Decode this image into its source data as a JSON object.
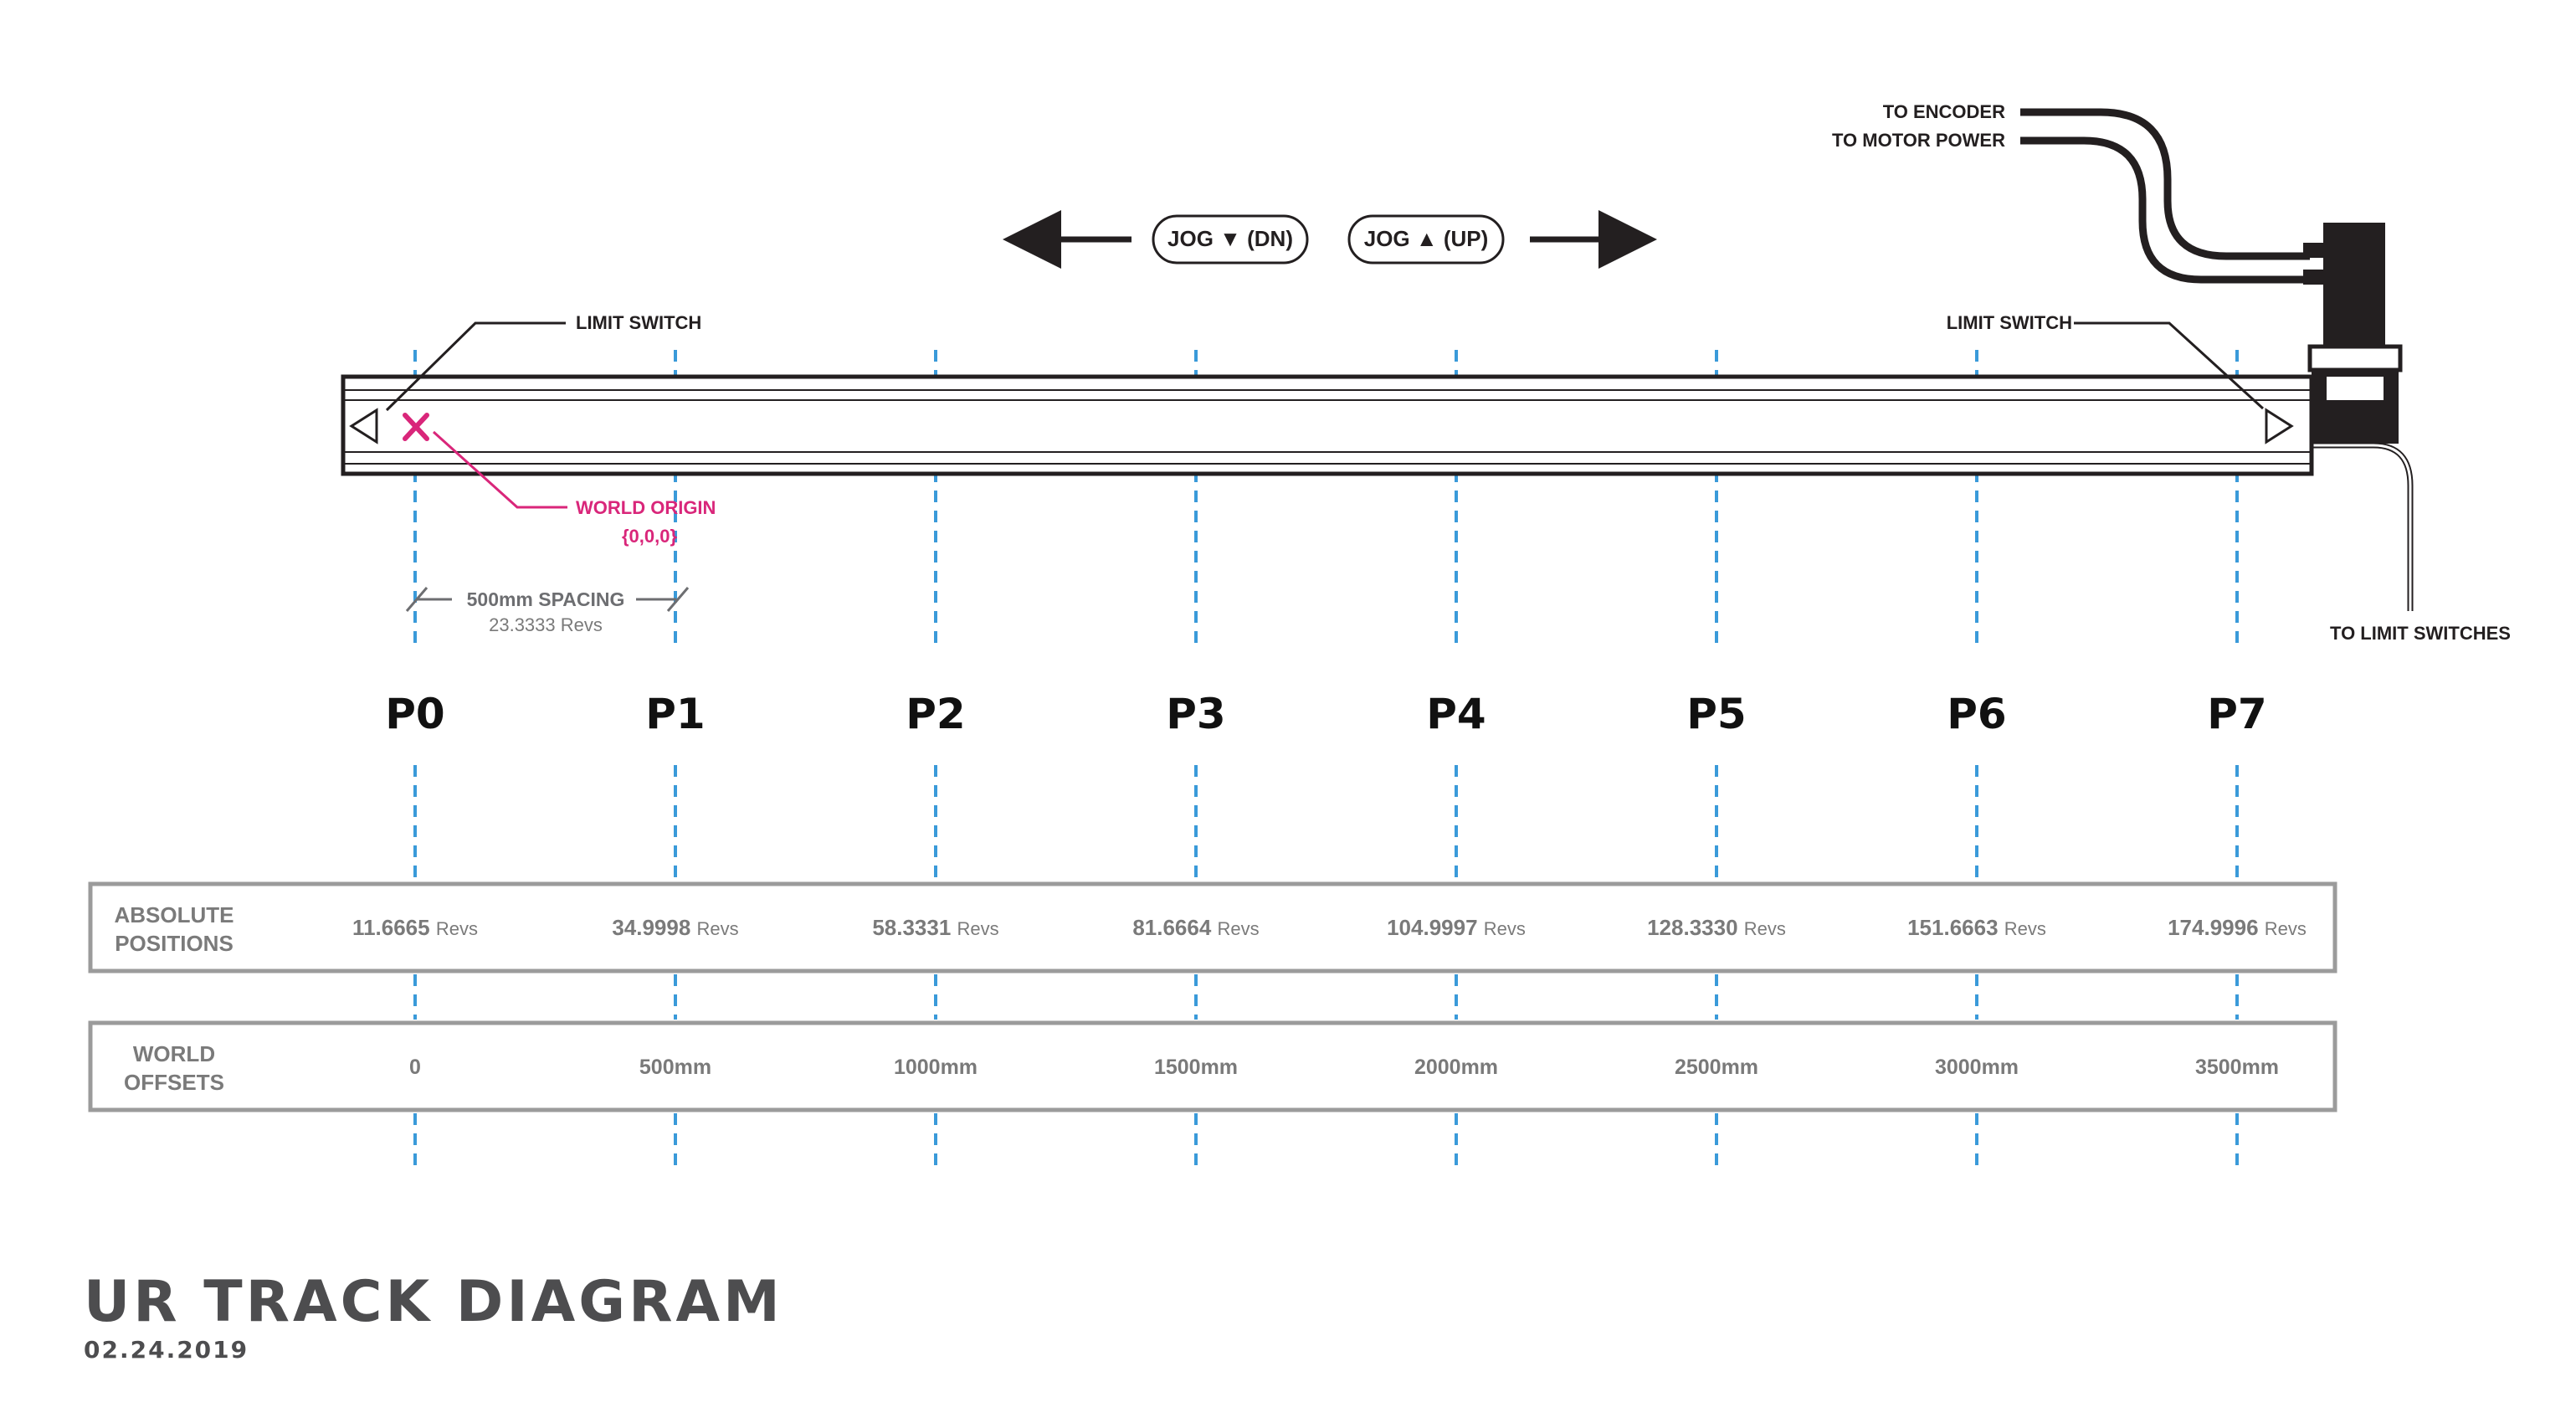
{
  "title": "UR TRACK DIAGRAM",
  "date": "02.24.2019",
  "jog_down_label": "JOG ▼ (DN)",
  "jog_up_label": "JOG ▲ (UP)",
  "limit_switch_left": "LIMIT SWITCH",
  "limit_switch_right": "LIMIT SWITCH",
  "to_encoder": "TO ENCODER",
  "to_motor_power": "TO MOTOR POWER",
  "to_limit_switches": "TO LIMIT SWITCHES",
  "world_origin_label": "WORLD ORIGIN",
  "world_origin_coords": "{0,0,0}",
  "spacing_label": "500mm SPACING",
  "spacing_revs": "23.3333 Revs",
  "positions": [
    {
      "label": "P0",
      "absolute_value": "11.6665",
      "offset": "0"
    },
    {
      "label": "P1",
      "absolute_value": "34.9998",
      "offset": "500mm"
    },
    {
      "label": "P2",
      "absolute_value": "58.3331",
      "offset": "1000mm"
    },
    {
      "label": "P3",
      "absolute_value": "81.6664",
      "offset": "1500mm"
    },
    {
      "label": "P4",
      "absolute_value": "104.9997",
      "offset": "2000mm"
    },
    {
      "label": "P5",
      "absolute_value": "128.3330",
      "offset": "2500mm"
    },
    {
      "label": "P6",
      "absolute_value": "151.6663",
      "offset": "3000mm"
    },
    {
      "label": "P7",
      "absolute_value": "174.9996",
      "offset": "3500mm"
    }
  ],
  "revs_unit": "Revs",
  "absolute_row_label_line1": "ABSOLUTE",
  "absolute_row_label_line2": "POSITIONS",
  "world_row_label_line1": "WORLD",
  "world_row_label_line2": "OFFSETS",
  "colors": {
    "dashed_line": "#3a9ad9",
    "origin": "#d9267a",
    "table_border": "#9b9b9b",
    "dark": "#231f20",
    "title": "#4d4d4f"
  }
}
